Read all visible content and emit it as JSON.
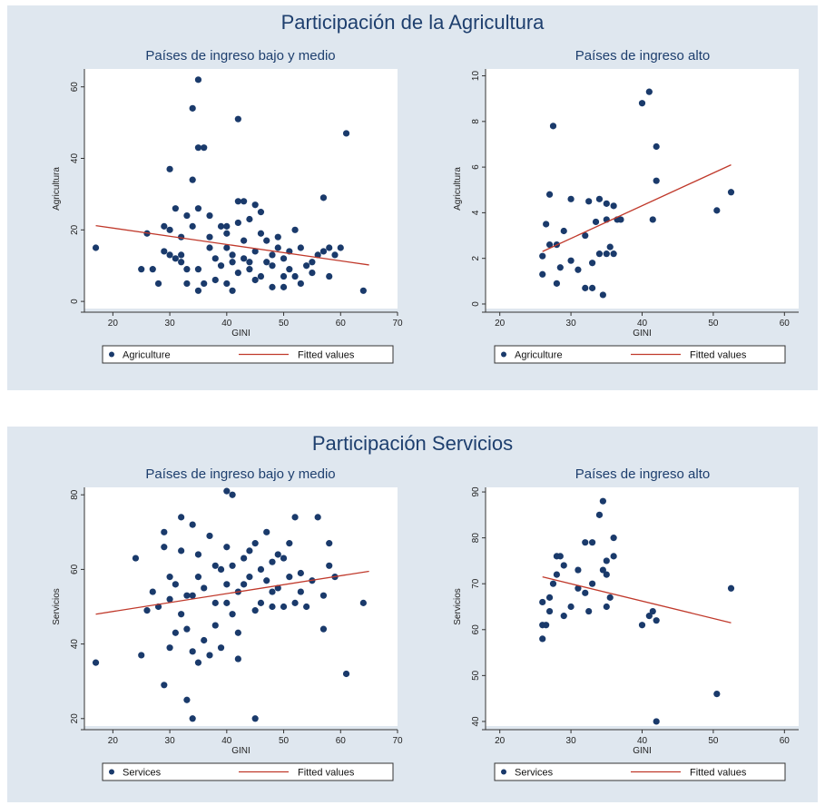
{
  "colors": {
    "marker": "#1a3a6b",
    "fit": "#c0392b",
    "panel_bg": "#dfe7ef",
    "plot_bg": "#ffffff",
    "title": "#1e3f6e"
  },
  "sections": [
    {
      "title": "Participación de la Agricultura"
    },
    {
      "title": "Participación Servicios"
    }
  ],
  "chart_data": [
    {
      "type": "scatter",
      "section": 0,
      "title": "Países de ingreso bajo y medio",
      "xlabel": "GINI",
      "ylabel": "Agricultura",
      "xlim": [
        15,
        70
      ],
      "ylim": [
        -2,
        65
      ],
      "xticks": [
        20,
        30,
        40,
        50,
        60,
        70
      ],
      "yticks": [
        0,
        20,
        40,
        60
      ],
      "series": [
        {
          "name": "Agriculture",
          "kind": "points",
          "points": [
            [
              17,
              15
            ],
            [
              25,
              9
            ],
            [
              26,
              19
            ],
            [
              27,
              9
            ],
            [
              28,
              5
            ],
            [
              29,
              21
            ],
            [
              29,
              14
            ],
            [
              30,
              13
            ],
            [
              30,
              20
            ],
            [
              30,
              37
            ],
            [
              31,
              12
            ],
            [
              31,
              26
            ],
            [
              32,
              13
            ],
            [
              32,
              18
            ],
            [
              32,
              11
            ],
            [
              33,
              9
            ],
            [
              33,
              24
            ],
            [
              33,
              5
            ],
            [
              34,
              21
            ],
            [
              34,
              34
            ],
            [
              34,
              54
            ],
            [
              35,
              62
            ],
            [
              35,
              9
            ],
            [
              35,
              26
            ],
            [
              35,
              43
            ],
            [
              35,
              3
            ],
            [
              36,
              43
            ],
            [
              36,
              5
            ],
            [
              37,
              18
            ],
            [
              37,
              24
            ],
            [
              37,
              15
            ],
            [
              38,
              6
            ],
            [
              38,
              12
            ],
            [
              39,
              21
            ],
            [
              39,
              10
            ],
            [
              40,
              5
            ],
            [
              40,
              19
            ],
            [
              40,
              21
            ],
            [
              40,
              15
            ],
            [
              41,
              3
            ],
            [
              41,
              13
            ],
            [
              41,
              11
            ],
            [
              42,
              28
            ],
            [
              42,
              51
            ],
            [
              42,
              22
            ],
            [
              42,
              8
            ],
            [
              43,
              12
            ],
            [
              43,
              17
            ],
            [
              43,
              28
            ],
            [
              44,
              23
            ],
            [
              44,
              11
            ],
            [
              44,
              9
            ],
            [
              45,
              6
            ],
            [
              45,
              14
            ],
            [
              45,
              27
            ],
            [
              46,
              7
            ],
            [
              46,
              19
            ],
            [
              46,
              25
            ],
            [
              47,
              17
            ],
            [
              47,
              11
            ],
            [
              48,
              13
            ],
            [
              48,
              4
            ],
            [
              48,
              10
            ],
            [
              49,
              18
            ],
            [
              49,
              15
            ],
            [
              50,
              7
            ],
            [
              50,
              12
            ],
            [
              50,
              4
            ],
            [
              51,
              14
            ],
            [
              51,
              9
            ],
            [
              52,
              20
            ],
            [
              52,
              7
            ],
            [
              53,
              15
            ],
            [
              53,
              5
            ],
            [
              54,
              10
            ],
            [
              55,
              8
            ],
            [
              55,
              11
            ],
            [
              56,
              13
            ],
            [
              57,
              29
            ],
            [
              57,
              14
            ],
            [
              58,
              15
            ],
            [
              58,
              7
            ],
            [
              59,
              13
            ],
            [
              60,
              15
            ],
            [
              61,
              47
            ],
            [
              64,
              3
            ]
          ]
        },
        {
          "name": "Fitted values",
          "kind": "line",
          "points": [
            [
              17,
              21.2
            ],
            [
              65,
              10.2
            ]
          ]
        }
      ]
    },
    {
      "type": "scatter",
      "section": 0,
      "title": "Países de ingreso alto",
      "xlabel": "GINI",
      "ylabel": "Agricultura",
      "xlim": [
        18,
        62
      ],
      "ylim": [
        -0.2,
        10.3
      ],
      "xticks": [
        20,
        30,
        40,
        50,
        60
      ],
      "yticks": [
        0,
        2,
        4,
        6,
        8,
        10
      ],
      "series": [
        {
          "name": "Agriculture",
          "kind": "points",
          "points": [
            [
              26,
              2.1
            ],
            [
              26,
              1.3
            ],
            [
              26.5,
              3.5
            ],
            [
              27,
              2.6
            ],
            [
              27,
              4.8
            ],
            [
              27.5,
              7.8
            ],
            [
              28,
              0.9
            ],
            [
              28,
              2.6
            ],
            [
              28.5,
              1.6
            ],
            [
              29,
              3.2
            ],
            [
              30,
              1.9
            ],
            [
              30,
              4.6
            ],
            [
              31,
              1.5
            ],
            [
              32,
              3.0
            ],
            [
              32,
              0.7
            ],
            [
              32.5,
              4.5
            ],
            [
              33,
              0.7
            ],
            [
              33,
              1.8
            ],
            [
              33.5,
              3.6
            ],
            [
              34,
              2.2
            ],
            [
              34,
              4.6
            ],
            [
              34.5,
              0.4
            ],
            [
              35,
              2.2
            ],
            [
              35,
              3.7
            ],
            [
              35,
              4.4
            ],
            [
              35.5,
              2.5
            ],
            [
              36,
              2.2
            ],
            [
              36,
              4.3
            ],
            [
              36.5,
              3.7
            ],
            [
              37,
              3.7
            ],
            [
              40,
              8.8
            ],
            [
              41,
              9.3
            ],
            [
              41.5,
              3.7
            ],
            [
              42,
              6.9
            ],
            [
              42,
              5.4
            ],
            [
              50.5,
              4.1
            ],
            [
              52.5,
              4.9
            ]
          ]
        },
        {
          "name": "Fitted values",
          "kind": "line",
          "points": [
            [
              26,
              2.3
            ],
            [
              52.5,
              6.1
            ]
          ]
        }
      ]
    },
    {
      "type": "scatter",
      "section": 1,
      "title": "Países de ingreso bajo y medio",
      "xlabel": "GINI",
      "ylabel": "Servicios",
      "xlim": [
        15,
        70
      ],
      "ylim": [
        18,
        82
      ],
      "xticks": [
        20,
        30,
        40,
        50,
        60,
        70
      ],
      "yticks": [
        20,
        40,
        60,
        80
      ],
      "series": [
        {
          "name": "Services",
          "kind": "points",
          "points": [
            [
              17,
              35
            ],
            [
              24,
              63
            ],
            [
              25,
              37
            ],
            [
              26,
              49
            ],
            [
              27,
              54
            ],
            [
              28,
              50
            ],
            [
              29,
              66
            ],
            [
              29,
              70
            ],
            [
              29,
              29
            ],
            [
              30,
              52
            ],
            [
              30,
              39
            ],
            [
              30,
              58
            ],
            [
              31,
              43
            ],
            [
              31,
              56
            ],
            [
              32,
              65
            ],
            [
              32,
              74
            ],
            [
              32,
              48
            ],
            [
              33,
              53
            ],
            [
              33,
              44
            ],
            [
              33,
              25
            ],
            [
              34,
              72
            ],
            [
              34,
              38
            ],
            [
              34,
              20
            ],
            [
              34,
              53
            ],
            [
              35,
              58
            ],
            [
              35,
              35
            ],
            [
              35,
              64
            ],
            [
              36,
              41
            ],
            [
              36,
              55
            ],
            [
              37,
              69
            ],
            [
              37,
              37
            ],
            [
              38,
              61
            ],
            [
              38,
              45
            ],
            [
              38,
              51
            ],
            [
              39,
              60
            ],
            [
              39,
              39
            ],
            [
              40,
              66
            ],
            [
              40,
              81
            ],
            [
              40,
              56
            ],
            [
              40,
              51
            ],
            [
              41,
              80
            ],
            [
              41,
              61
            ],
            [
              41,
              48
            ],
            [
              42,
              36
            ],
            [
              42,
              54
            ],
            [
              42,
              43
            ],
            [
              43,
              63
            ],
            [
              43,
              56
            ],
            [
              44,
              65
            ],
            [
              44,
              58
            ],
            [
              45,
              49
            ],
            [
              45,
              67
            ],
            [
              45,
              20
            ],
            [
              46,
              51
            ],
            [
              46,
              60
            ],
            [
              47,
              57
            ],
            [
              47,
              70
            ],
            [
              48,
              54
            ],
            [
              48,
              62
            ],
            [
              48,
              50
            ],
            [
              49,
              64
            ],
            [
              49,
              55
            ],
            [
              50,
              63
            ],
            [
              50,
              50
            ],
            [
              51,
              58
            ],
            [
              51,
              67
            ],
            [
              52,
              74
            ],
            [
              52,
              51
            ],
            [
              53,
              59
            ],
            [
              53,
              54
            ],
            [
              54,
              50
            ],
            [
              55,
              57
            ],
            [
              56,
              74
            ],
            [
              57,
              53
            ],
            [
              57,
              44
            ],
            [
              58,
              67
            ],
            [
              58,
              61
            ],
            [
              59,
              58
            ],
            [
              61,
              32
            ],
            [
              64,
              51
            ]
          ]
        },
        {
          "name": "Fitted values",
          "kind": "line",
          "points": [
            [
              17,
              48
            ],
            [
              65,
              59.5
            ]
          ]
        }
      ]
    },
    {
      "type": "scatter",
      "section": 1,
      "title": "Países de ingreso alto",
      "xlabel": "GINI",
      "ylabel": "Servicios",
      "xlim": [
        18,
        62
      ],
      "ylim": [
        39,
        91
      ],
      "xticks": [
        20,
        30,
        40,
        50,
        60
      ],
      "yticks": [
        40,
        50,
        60,
        70,
        80,
        90
      ],
      "series": [
        {
          "name": "Services",
          "kind": "points",
          "points": [
            [
              26,
              58
            ],
            [
              26,
              61
            ],
            [
              26,
              66
            ],
            [
              26.5,
              61
            ],
            [
              27,
              64
            ],
            [
              27,
              67
            ],
            [
              27.5,
              70
            ],
            [
              28,
              76
            ],
            [
              28,
              72
            ],
            [
              28.5,
              76
            ],
            [
              29,
              63
            ],
            [
              29,
              74
            ],
            [
              30,
              65
            ],
            [
              31,
              73
            ],
            [
              31,
              69
            ],
            [
              32,
              79
            ],
            [
              32,
              68
            ],
            [
              32.5,
              64
            ],
            [
              33,
              79
            ],
            [
              33,
              70
            ],
            [
              34,
              85
            ],
            [
              34.5,
              88
            ],
            [
              34.5,
              73
            ],
            [
              35,
              65
            ],
            [
              35,
              72
            ],
            [
              35,
              75
            ],
            [
              35.5,
              67
            ],
            [
              36,
              80
            ],
            [
              36,
              76
            ],
            [
              40,
              61
            ],
            [
              41,
              63
            ],
            [
              41.5,
              64
            ],
            [
              42,
              40
            ],
            [
              42,
              62
            ],
            [
              50.5,
              46
            ],
            [
              52.5,
              69
            ]
          ]
        },
        {
          "name": "Fitted values",
          "kind": "line",
          "points": [
            [
              26,
              71.5
            ],
            [
              52.5,
              61.5
            ]
          ]
        }
      ]
    }
  ]
}
